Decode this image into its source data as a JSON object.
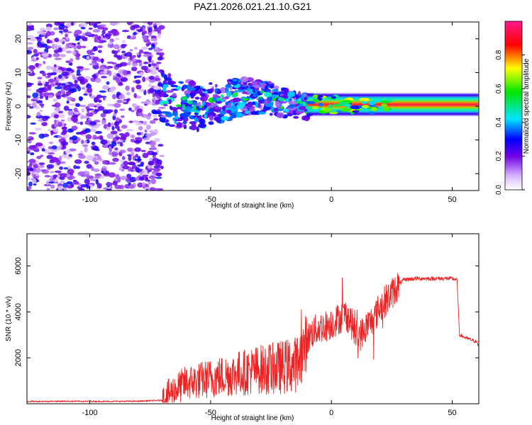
{
  "figure_title": "PAZ1.2026.021.21.10.G21",
  "colors": {
    "snr_line": "#ee2222",
    "frame": "#000000"
  },
  "chart_data": [
    {
      "type": "heatmap",
      "title": "PAZ1.2026.021.21.10.G21",
      "xlabel": "Height of straight line (km)",
      "ylabel": "Frequency (Hz)",
      "xlim": [
        -126,
        61
      ],
      "ylim": [
        -25,
        25
      ],
      "xticks": [
        -100,
        -50,
        0,
        50
      ],
      "yticks": [
        -20,
        -10,
        0,
        10,
        20
      ],
      "colorbar": {
        "label": "Normalized spectral amplitude",
        "range": [
          0,
          1
        ],
        "ticks": [
          "0.0",
          "0.2",
          "0.4",
          "0.6",
          "0.8"
        ]
      },
      "features": [
        {
          "x_range": [
            -126,
            -70
          ],
          "freq_range": [
            -25,
            25
          ],
          "amplitude": "0.1-0.3",
          "pattern": "noise"
        },
        {
          "x_range": [
            -70,
            -10
          ],
          "freq_range": [
            -5,
            7
          ],
          "amplitude": "0.2-0.5",
          "pattern": "scattered"
        },
        {
          "x_range": [
            -10,
            61
          ],
          "freq_center": 0.5,
          "amplitude": "0.8-1.0",
          "pattern": "narrow band"
        }
      ]
    },
    {
      "type": "line",
      "xlabel": "Height of straight line (km)",
      "ylabel": "SNR (10 * v/v)",
      "xlim": [
        -126,
        61
      ],
      "ylim": [
        0,
        7400
      ],
      "xticks": [
        -100,
        -50,
        0,
        50
      ],
      "yticks": [
        2000,
        4000,
        6000
      ],
      "series": [
        {
          "name": "SNR",
          "x": [
            -126,
            -110,
            -95,
            -80,
            -70,
            -68,
            -65,
            -62,
            -60,
            -55,
            -50,
            -45,
            -40,
            -35,
            -30,
            -25,
            -20,
            -15,
            -12,
            -10,
            -8,
            -5,
            -2,
            0,
            3,
            6,
            8,
            10,
            12,
            15,
            18,
            20,
            25,
            28,
            30,
            35,
            40,
            45,
            50,
            52,
            53,
            56,
            60,
            61
          ],
          "y": [
            100,
            110,
            100,
            110,
            150,
            350,
            600,
            800,
            900,
            1000,
            1100,
            1200,
            1300,
            1400,
            1500,
            1500,
            1600,
            1700,
            2200,
            2800,
            3100,
            3300,
            3400,
            3500,
            3700,
            3900,
            3600,
            3000,
            3000,
            3400,
            3800,
            4200,
            4800,
            5200,
            5400,
            5450,
            5450,
            5450,
            5450,
            5400,
            3000,
            2850,
            2700,
            2500
          ]
        }
      ]
    }
  ]
}
